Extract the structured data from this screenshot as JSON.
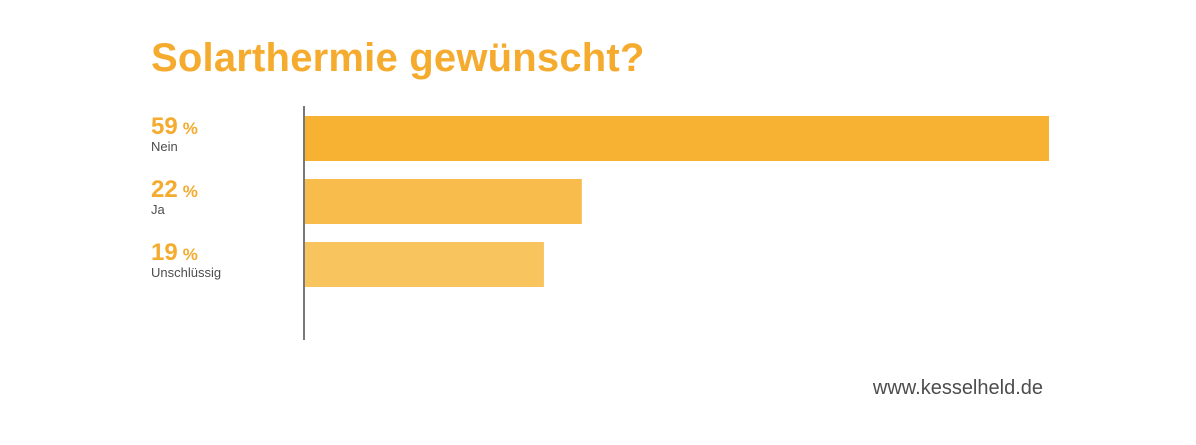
{
  "chart_data": {
    "type": "bar",
    "orientation": "horizontal",
    "title": "Solarthermie gewünscht?",
    "categories": [
      "Nein",
      "Ja",
      "Unschlüssig"
    ],
    "values": [
      59,
      22,
      19
    ],
    "value_labels": [
      "59",
      "22",
      "19"
    ],
    "unit": "%",
    "xlim": [
      0,
      59
    ],
    "grid": false,
    "legend": "none",
    "bar_colors": [
      "#f7b133",
      "#f7bc4c",
      "#f8c45e"
    ],
    "axis_color": "#4d4d4d",
    "value_color": "#f5ab2e",
    "category_color": "#4d4d4d"
  },
  "footer": {
    "url": "www.kesselheld.de"
  }
}
